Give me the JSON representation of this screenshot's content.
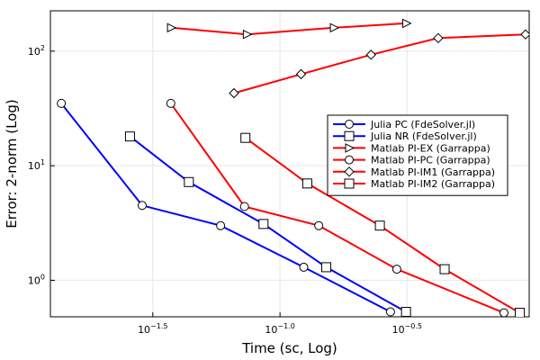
{
  "chart_data": {
    "type": "line",
    "title": "",
    "xlabel": "Time (sc, Log)",
    "ylabel": "Error: 2-norm (Log)",
    "x_scale": "log10",
    "y_scale": "log10",
    "xlim": [
      0.0125,
      0.955
    ],
    "ylim": [
      0.48,
      225
    ],
    "x_ticks": [
      {
        "value": 0.0316,
        "label": "10",
        "exp": "−1.5"
      },
      {
        "value": 0.1,
        "label": "10",
        "exp": "−1.0"
      },
      {
        "value": 0.316,
        "label": "10",
        "exp": "−0.5"
      }
    ],
    "y_ticks": [
      {
        "value": 1,
        "label": "10",
        "exp": "0"
      },
      {
        "value": 10,
        "label": "10",
        "exp": "1"
      },
      {
        "value": 100,
        "label": "10",
        "exp": "2"
      }
    ],
    "grid": true,
    "legend_position": "right-middle",
    "series": [
      {
        "name": "Julia PC (FdeSolver.jl)",
        "color": "#0000ff",
        "marker": "circle",
        "points": [
          [
            0.0138,
            35.0
          ],
          [
            0.0287,
            4.5
          ],
          [
            0.0584,
            3.0
          ],
          [
            0.124,
            1.3
          ],
          [
            0.272,
            0.53
          ]
        ]
      },
      {
        "name": "Julia NR (FdeSolver.jl)",
        "color": "#0000ff",
        "marker": "square",
        "points": [
          [
            0.0257,
            18.0
          ],
          [
            0.0438,
            7.2
          ],
          [
            0.0861,
            3.1
          ],
          [
            0.152,
            1.3
          ],
          [
            0.313,
            0.53
          ]
        ]
      },
      {
        "name": "Matlab PI-EX (Garrappa)",
        "color": "#ff0000",
        "marker": "triangle-right",
        "points": [
          [
            0.0373,
            160.0
          ],
          [
            0.0741,
            140.0
          ],
          [
            0.163,
            160.0
          ],
          [
            0.314,
            175.0
          ]
        ]
      },
      {
        "name": "Matlab PI-PC (Garrappa)",
        "color": "#ff0000",
        "marker": "circle",
        "points": [
          [
            0.0372,
            35.0
          ],
          [
            0.0725,
            4.4
          ],
          [
            0.142,
            3.0
          ],
          [
            0.288,
            1.25
          ],
          [
            0.76,
            0.52
          ]
        ]
      },
      {
        "name": "Matlab PI-IM1 (Garrappa)",
        "color": "#ff0000",
        "marker": "diamond",
        "points": [
          [
            0.0659,
            43.0
          ],
          [
            0.121,
            63.0
          ],
          [
            0.228,
            93.0
          ],
          [
            0.419,
            130.0
          ],
          [
            0.924,
            140.0
          ]
        ]
      },
      {
        "name": "Matlab PI-IM2 (Garrappa)",
        "color": "#ff0000",
        "marker": "square",
        "points": [
          [
            0.0731,
            17.5
          ],
          [
            0.128,
            7.0
          ],
          [
            0.247,
            3.0
          ],
          [
            0.444,
            1.25
          ],
          [
            0.877,
            0.52
          ]
        ]
      }
    ]
  }
}
